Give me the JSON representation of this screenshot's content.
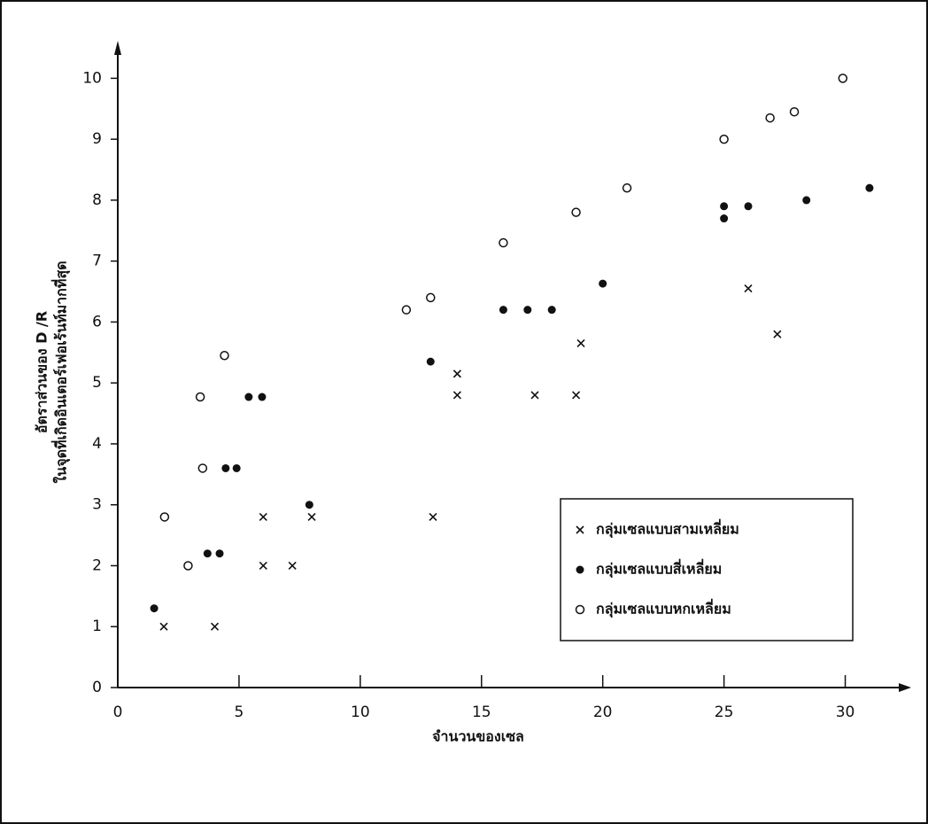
{
  "chart_data": {
    "type": "scatter",
    "x_label": "จำนวนของเซล",
    "y_label": [
      "อัตราส่วนของ D /R",
      "ในจุดที่เกิดอินเตอร์เฟอเร้นท์มากที่สุด"
    ],
    "xlim": [
      0,
      32.5
    ],
    "xticks": [
      0,
      5,
      10,
      15,
      20,
      25,
      30
    ],
    "ylim": [
      0,
      10.5
    ],
    "yticks": [
      0,
      1,
      2,
      3,
      4,
      5,
      6,
      7,
      8,
      9,
      10
    ],
    "legend": "lower-right",
    "series": [
      {
        "name": "กลุ่มเซลแบบสามเหลี่ยม",
        "color": "#111111",
        "marker": "cross",
        "x": [
          1.9,
          4,
          6,
          6,
          7.2,
          8,
          13,
          14,
          14,
          17.2,
          19.1,
          18.9,
          26,
          27.2
        ],
        "values": [
          1,
          1,
          2.8,
          2,
          2,
          2.8,
          2.8,
          5.15,
          4.8,
          4.8,
          5.65,
          4.8,
          6.55,
          5.8
        ]
      },
      {
        "name": "กลุ่มเซลแบบสี่เหลี่ยม",
        "color": "#111111",
        "marker": "filled-circle",
        "x": [
          1.5,
          3.7,
          4.2,
          4.45,
          4.9,
          5.4,
          5.95,
          7.9,
          12.9,
          15.9,
          16.9,
          17.9,
          20,
          25,
          25,
          26,
          28.4,
          31
        ],
        "values": [
          1.3,
          2.2,
          2.2,
          3.6,
          3.6,
          4.77,
          4.77,
          3,
          5.35,
          6.2,
          6.2,
          6.2,
          6.63,
          7.9,
          7.7,
          7.9,
          8,
          8.2
        ]
      },
      {
        "name": "กลุ่มเซลแบบหกเหลี่ยม",
        "color": "#111111",
        "marker": "open-circle",
        "x": [
          1.93,
          2.9,
          3.5,
          3.4,
          4.4,
          11.9,
          12.9,
          15.9,
          18.9,
          21,
          25,
          26.9,
          27.9,
          29.9
        ],
        "values": [
          2.8,
          2,
          3.6,
          4.77,
          5.45,
          6.2,
          6.4,
          7.3,
          7.8,
          8.2,
          9,
          9.35,
          9.45,
          10
        ]
      }
    ]
  }
}
